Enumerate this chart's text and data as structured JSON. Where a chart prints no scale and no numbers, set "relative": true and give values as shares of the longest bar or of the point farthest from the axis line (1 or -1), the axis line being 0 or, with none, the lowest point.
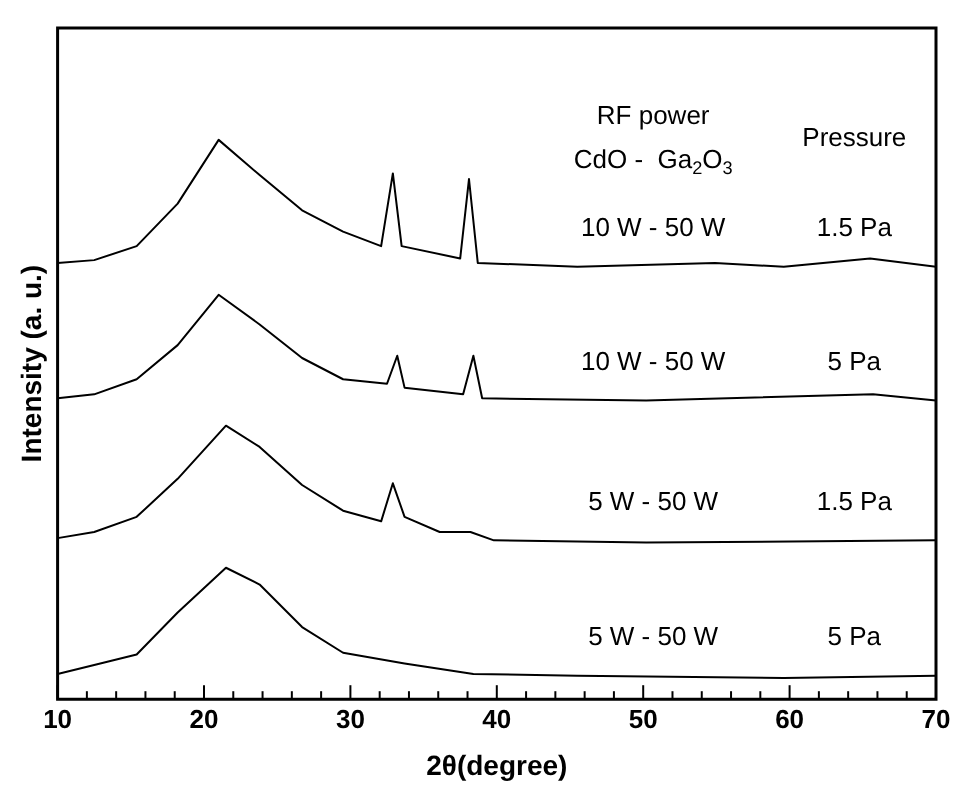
{
  "chart_data": {
    "type": "line",
    "relative": true,
    "xlabel": "2θ(degree)",
    "ylabel": "Intensity (a. u.)",
    "xlim": [
      10,
      70
    ],
    "xticks": [
      10,
      {
        "value": 12,
        "label": null
      },
      {
        "value": 14,
        "label": null
      },
      {
        "value": 16,
        "label": null
      },
      {
        "value": 18,
        "label": null
      },
      20,
      {
        "value": 22,
        "label": null
      },
      {
        "value": 24,
        "label": null
      },
      {
        "value": 26,
        "label": null
      },
      {
        "value": 28,
        "label": null
      },
      30,
      {
        "value": 32,
        "label": null
      },
      {
        "value": 34,
        "label": null
      },
      {
        "value": 36,
        "label": null
      },
      {
        "value": 38,
        "label": null
      },
      40,
      {
        "value": 42,
        "label": null
      },
      {
        "value": 44,
        "label": null
      },
      {
        "value": 46,
        "label": null
      },
      {
        "value": 48,
        "label": null
      },
      50,
      {
        "value": 52,
        "label": null
      },
      {
        "value": 54,
        "label": null
      },
      {
        "value": 56,
        "label": null
      },
      {
        "value": 58,
        "label": null
      },
      60,
      {
        "value": 62,
        "label": null
      },
      {
        "value": 64,
        "label": null
      },
      {
        "value": 66,
        "label": null
      },
      {
        "value": 68,
        "label": null
      },
      70
    ],
    "grid": false,
    "legend": false,
    "marker": "none",
    "line_style": "solid",
    "series": [
      {
        "color": "#000000",
        "x": [
          10,
          12.5,
          15.4,
          18.2,
          21,
          23.8,
          26.7,
          29.5,
          32.1,
          32.9,
          33.5,
          37.5,
          38.1,
          38.7,
          45.5,
          54.9,
          59.6,
          65.5,
          70
        ],
        "values": [
          0.78,
          0.785,
          0.81,
          0.886,
          1,
          0.937,
          0.874,
          0.836,
          0.81,
          0.94,
          0.81,
          0.788,
          0.93,
          0.78,
          0.773,
          0.78,
          0.773,
          0.788,
          0.773
        ]
      },
      {
        "color": "#000000",
        "x": [
          10,
          12.5,
          15.4,
          18.2,
          21,
          23.8,
          26.7,
          29.5,
          32.5,
          33.2,
          33.7,
          37.7,
          38.4,
          39,
          50.2,
          65.7,
          70
        ],
        "values": [
          0.538,
          0.545,
          0.572,
          0.633,
          0.723,
          0.67,
          0.61,
          0.572,
          0.564,
          0.614,
          0.557,
          0.545,
          0.614,
          0.538,
          0.534,
          0.545,
          0.534
        ]
      },
      {
        "color": "#000000",
        "x": [
          10,
          12.5,
          15.4,
          18.2,
          21.5,
          23.8,
          26.7,
          29.5,
          32.1,
          32.9,
          33.7,
          36.1,
          38.2,
          39.8,
          50.2,
          70
        ],
        "values": [
          0.288,
          0.299,
          0.326,
          0.394,
          0.489,
          0.451,
          0.383,
          0.337,
          0.318,
          0.386,
          0.326,
          0.299,
          0.299,
          0.284,
          0.28,
          0.284
        ]
      },
      {
        "color": "#000000",
        "x": [
          10,
          12.5,
          15.4,
          18.2,
          21.5,
          23.8,
          26.7,
          29.5,
          33.7,
          38.4,
          45.5,
          59.6,
          70
        ],
        "values": [
          0.045,
          0.061,
          0.08,
          0.155,
          0.235,
          0.205,
          0.129,
          0.083,
          0.064,
          0.045,
          0.042,
          0.038,
          0.042
        ]
      }
    ],
    "annotations": [
      "RF power",
      "CdO -  Ga$_{2}$O$_{3}$",
      "Pressure",
      "10 W - 50 W",
      "1.5 Pa",
      "10 W - 50 W",
      "5 Pa",
      "5 W - 50 W",
      "1.5 Pa",
      "5 W - 50 W",
      "5 Pa"
    ]
  }
}
